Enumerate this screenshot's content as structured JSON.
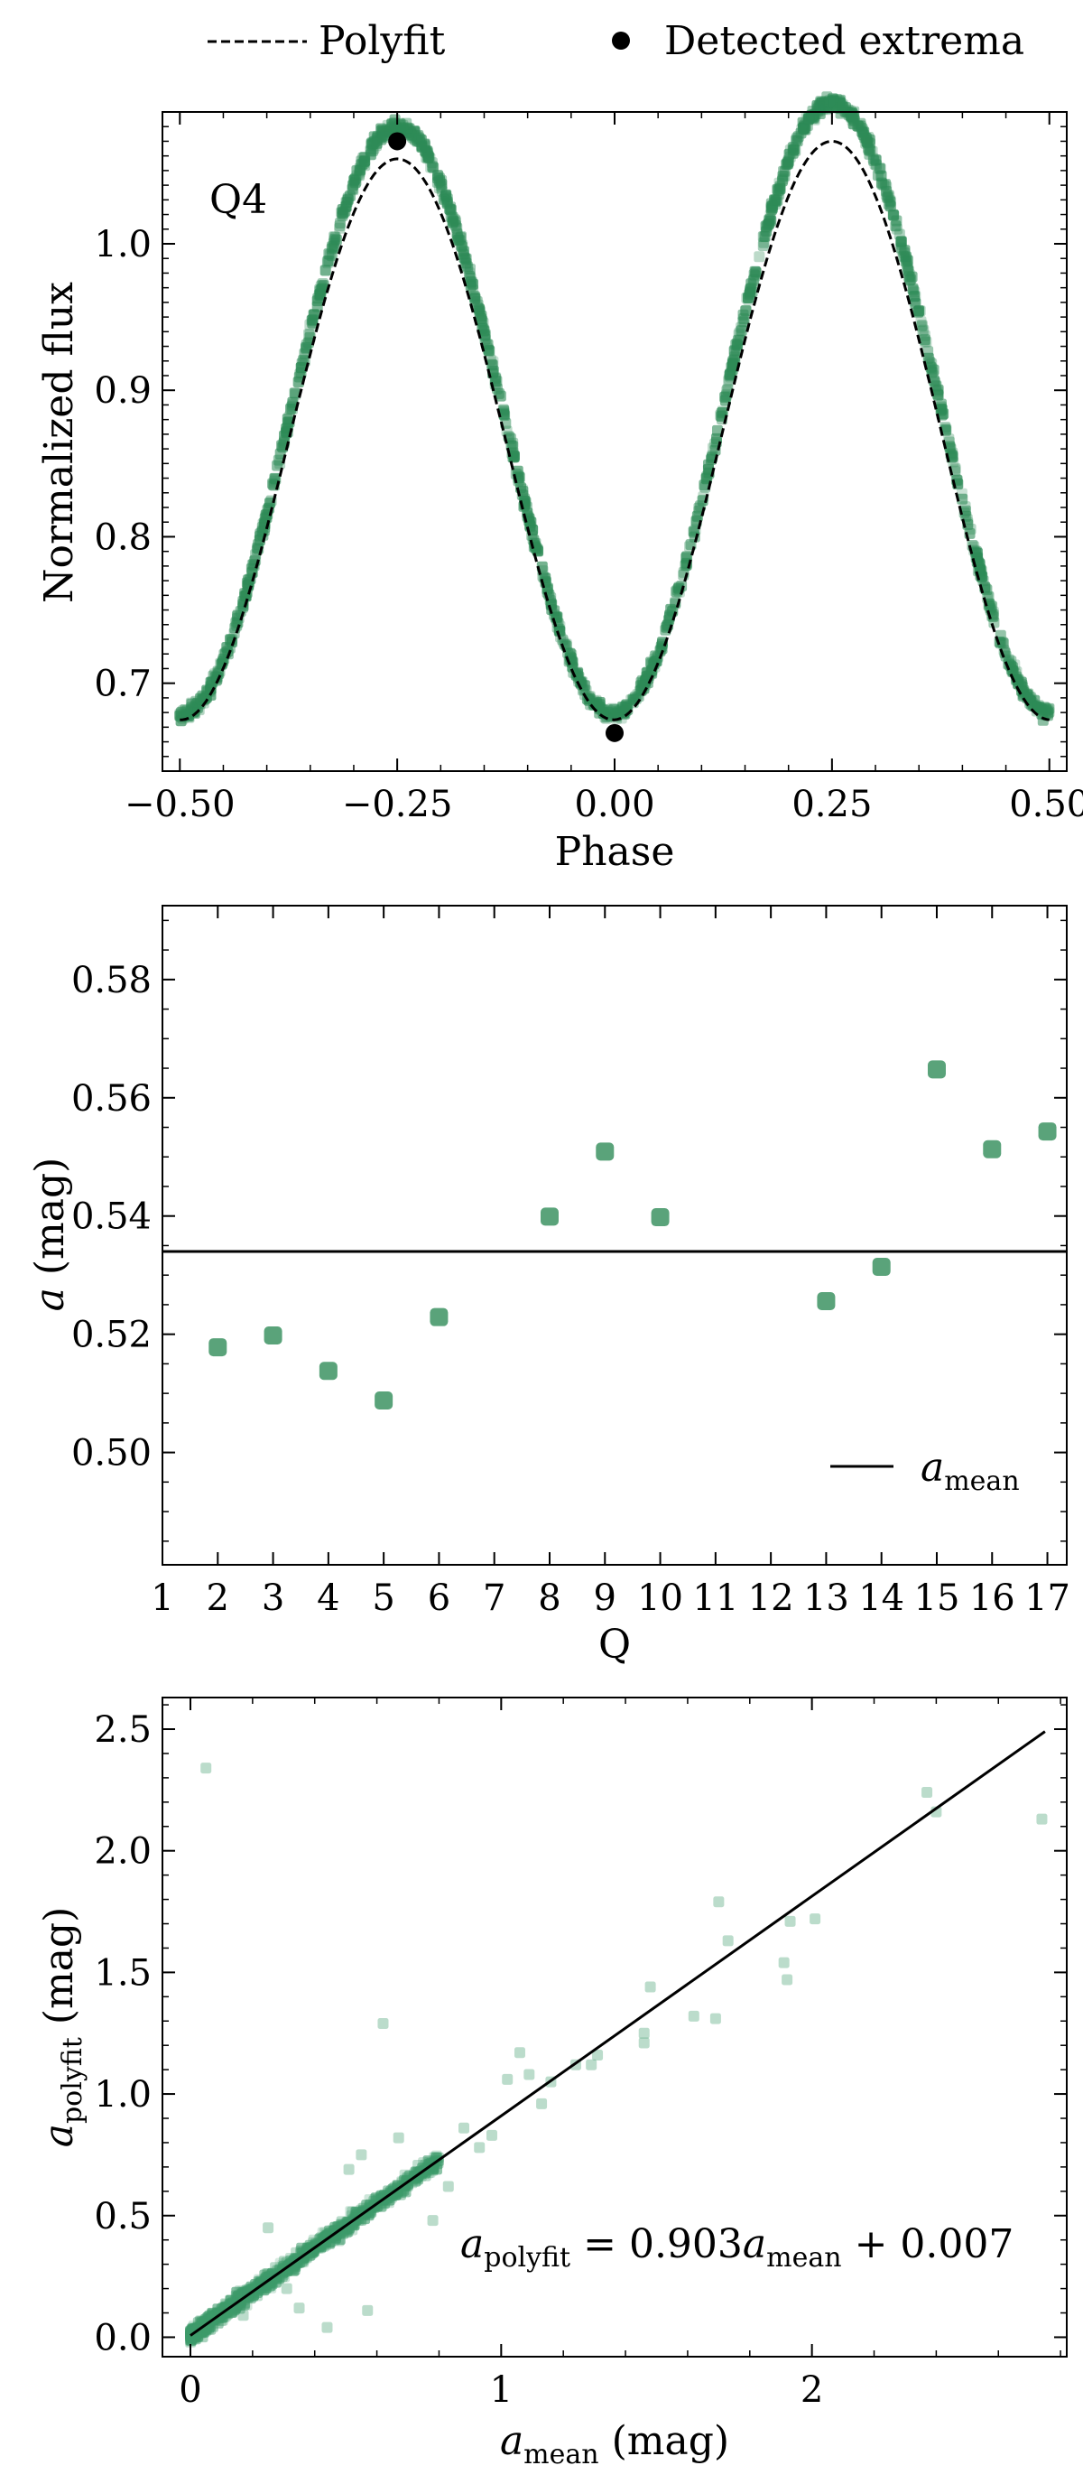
{
  "legend_top": {
    "polyfit_label": "Polyfit",
    "extrema_label": "Detected extrema"
  },
  "chart_data": [
    {
      "type": "scatter",
      "panel_label": "Q4",
      "xlabel": "Phase",
      "ylabel": "Normalized flux",
      "xlim": [
        -0.52,
        0.52
      ],
      "ylim": [
        0.64,
        1.09
      ],
      "xticks": [
        -0.5,
        -0.25,
        0.0,
        0.25,
        0.5
      ],
      "xtick_labels": [
        "−0.50",
        "−0.25",
        "0.00",
        "0.25",
        "0.50"
      ],
      "yticks": [
        0.7,
        0.8,
        0.9,
        1.0
      ],
      "ytick_labels": [
        "0.7",
        "0.8",
        "0.9",
        "1.0"
      ],
      "data_model": {
        "description": "flux = m - A1*cos(4*pi*phase) + A2*sin(2*pi*phase)",
        "m": 0.8835,
        "A1": 0.2045,
        "A2": 0.008
      },
      "polyfit_model": {
        "m": 0.8695,
        "A1": 0.1945,
        "A2": 0.006
      },
      "extrema": [
        {
          "x": -0.25,
          "y": 1.07
        },
        {
          "x": 0.0,
          "y": 0.666
        }
      ],
      "series": [
        {
          "name": "Polyfit",
          "style": "dashed-line",
          "color": "#000000"
        },
        {
          "name": "Detected extrema",
          "style": "point",
          "color": "#000000"
        }
      ],
      "point_color": "#2e8b57"
    },
    {
      "type": "scatter",
      "xlabel": "Q",
      "ylabel": "a (mag)",
      "ylabel_italic_part": "a",
      "ylabel_rest": " (mag)",
      "xlim": [
        1,
        17.35
      ],
      "ylim": [
        0.481,
        0.5925
      ],
      "xticks": [
        1,
        2,
        3,
        4,
        5,
        6,
        7,
        8,
        9,
        10,
        11,
        12,
        13,
        14,
        15,
        16,
        17
      ],
      "xtick_labels": [
        "1",
        "2",
        "3",
        "4",
        "5",
        "6",
        "7",
        "8",
        "9",
        "10",
        "11",
        "12",
        "13",
        "14",
        "15",
        "16",
        "17"
      ],
      "yticks": [
        0.5,
        0.52,
        0.54,
        0.56,
        0.58
      ],
      "ytick_labels": [
        "0.50",
        "0.52",
        "0.54",
        "0.56",
        "0.58"
      ],
      "x": [
        2,
        3,
        4,
        5,
        6,
        8,
        9,
        10,
        13,
        14,
        15,
        16,
        17
      ],
      "y": [
        0.5178,
        0.5198,
        0.5138,
        0.5088,
        0.5229,
        0.5399,
        0.5509,
        0.5398,
        0.5256,
        0.5314,
        0.5648,
        0.5513,
        0.5543
      ],
      "mean_line": 0.534,
      "legend": {
        "label_base": "a",
        "label_sub": "mean",
        "placement": "lower-right"
      },
      "point_color": "#5aa37a"
    },
    {
      "type": "scatter",
      "xlabel_base": "a",
      "xlabel_sub": "mean",
      "xlabel_rest": " (mag)",
      "ylabel_base": "a",
      "ylabel_sub": "polyfit",
      "ylabel_rest": " (mag)",
      "xlim": [
        -0.09,
        2.82
      ],
      "ylim": [
        -0.08,
        2.63
      ],
      "xticks": [
        0,
        1,
        2
      ],
      "xtick_labels": [
        "0",
        "1",
        "2"
      ],
      "yticks": [
        0.0,
        0.5,
        1.0,
        1.5,
        2.0,
        2.5
      ],
      "ytick_labels": [
        "0.0",
        "0.5",
        "1.0",
        "1.5",
        "2.0",
        "2.5"
      ],
      "fit": {
        "slope": 0.903,
        "intercept": 0.007,
        "x_range": [
          0,
          2.75
        ]
      },
      "annotation": {
        "lhs_base": "a",
        "lhs_sub": "polyfit",
        "mid": " = 0.903",
        "rhs_base": "a",
        "rhs_sub": "mean",
        "tail": " + 0.007"
      },
      "outliers": [
        [
          0.05,
          2.34
        ],
        [
          0.62,
          1.29
        ],
        [
          0.44,
          0.04
        ],
        [
          0.57,
          0.11
        ],
        [
          0.35,
          0.12
        ],
        [
          0.17,
          0.09
        ],
        [
          1.06,
          1.17
        ],
        [
          1.02,
          1.06
        ],
        [
          1.09,
          1.08
        ],
        [
          1.16,
          1.05
        ],
        [
          1.24,
          1.12
        ],
        [
          1.31,
          1.16
        ],
        [
          1.29,
          1.12
        ],
        [
          1.46,
          1.25
        ],
        [
          1.46,
          1.21
        ],
        [
          1.48,
          1.44
        ],
        [
          1.62,
          1.32
        ],
        [
          1.69,
          1.31
        ],
        [
          1.7,
          1.79
        ],
        [
          1.73,
          1.63
        ],
        [
          1.91,
          1.54
        ],
        [
          1.92,
          1.47
        ],
        [
          1.93,
          1.71
        ],
        [
          2.01,
          1.72
        ],
        [
          2.37,
          2.24
        ],
        [
          2.4,
          2.16
        ],
        [
          2.74,
          2.13
        ],
        [
          0.88,
          0.86
        ],
        [
          0.93,
          0.78
        ],
        [
          0.55,
          0.75
        ],
        [
          0.78,
          0.48
        ],
        [
          0.25,
          0.45
        ],
        [
          0.31,
          0.2
        ],
        [
          0.51,
          0.69
        ],
        [
          0.67,
          0.82
        ],
        [
          0.83,
          0.62
        ],
        [
          1.13,
          0.96
        ],
        [
          0.97,
          0.83
        ]
      ],
      "point_color": "#3d9a6a"
    }
  ]
}
